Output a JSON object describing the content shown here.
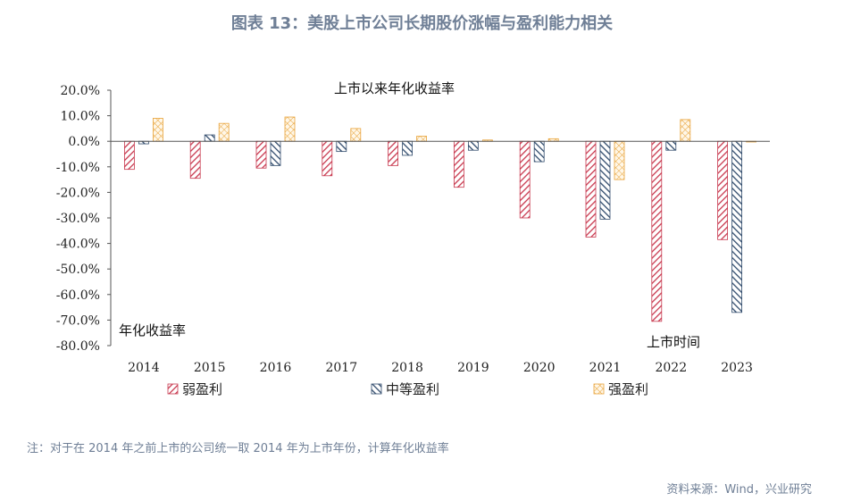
{
  "figure": {
    "title": "图表 13：美股上市公司长期股价涨幅与盈利能力相关",
    "note": "注：对于在 2014 年之前上市的公司统一取 2014 年为上市年份，计算年化收益率",
    "source": "资料来源：Wind，兴业研究"
  },
  "chart_data": {
    "type": "bar",
    "title": "上市以来年化收益率",
    "xlabel": "上市时间",
    "ylabel": "年化收益率",
    "categories": [
      "2014",
      "2015",
      "2016",
      "2017",
      "2018",
      "2019",
      "2020",
      "2021",
      "2022",
      "2023"
    ],
    "ylim": [
      -80,
      20
    ],
    "yticks": [
      20,
      10,
      0,
      -10,
      -20,
      -30,
      -40,
      -50,
      -60,
      -70,
      -80
    ],
    "ytick_labels": [
      "20.0%",
      "10.0%",
      "0.0%",
      "-10.0%",
      "-20.0%",
      "-30.0%",
      "-40.0%",
      "-50.0%",
      "-60.0%",
      "-70.0%",
      "-80.0%"
    ],
    "unit": "%",
    "legend_position": "bottom",
    "grid": false,
    "series": [
      {
        "name": "弱盈利",
        "color": "#c8384e",
        "pattern": "diagonal-right",
        "values": [
          -11.0,
          -14.5,
          -10.5,
          -13.5,
          -9.5,
          -18.0,
          -30.0,
          -37.5,
          -70.5,
          -38.5
        ]
      },
      {
        "name": "中等盈利",
        "color": "#2f4a6b",
        "pattern": "diagonal-left",
        "values": [
          -1.0,
          2.5,
          -9.5,
          -4.0,
          -5.5,
          -3.5,
          -8.0,
          -30.5,
          -3.5,
          -67.0
        ]
      },
      {
        "name": "强盈利",
        "color": "#e8a33a",
        "pattern": "crosshatch",
        "values": [
          9.0,
          7.0,
          9.5,
          5.0,
          2.0,
          0.5,
          1.0,
          -15.0,
          8.5,
          0.0
        ]
      }
    ]
  }
}
